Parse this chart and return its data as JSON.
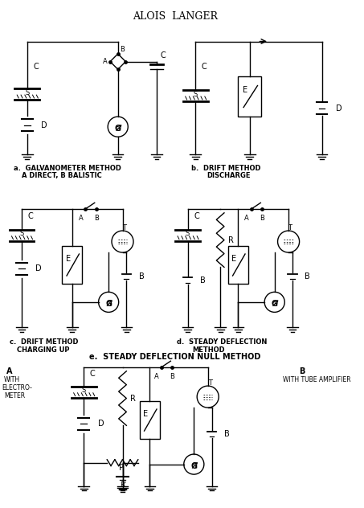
{
  "title": "ALOIS  LANGER",
  "background_color": "#ffffff",
  "line_color": "#000000",
  "captions": {
    "a": "a.  GALVANOMETER METHOD",
    "a2": "A DIRECT, B BALISTIC",
    "b": "b.  DRIFT METHOD",
    "b2": "DISCHARGE",
    "c": "c.  DRIFT METHOD",
    "c2": "CHARGING UP",
    "d": "d.  STEADY DEFLECTION",
    "d2": "METHOD",
    "e": "e.  STEADY DEFLECTION NULL METHOD",
    "eA": "A",
    "eA2": "WITH",
    "eA3": "ELECTRO-",
    "eA4": "METER",
    "eB": "B",
    "eB2": "WITH TUBE AMPLIFIER"
  }
}
